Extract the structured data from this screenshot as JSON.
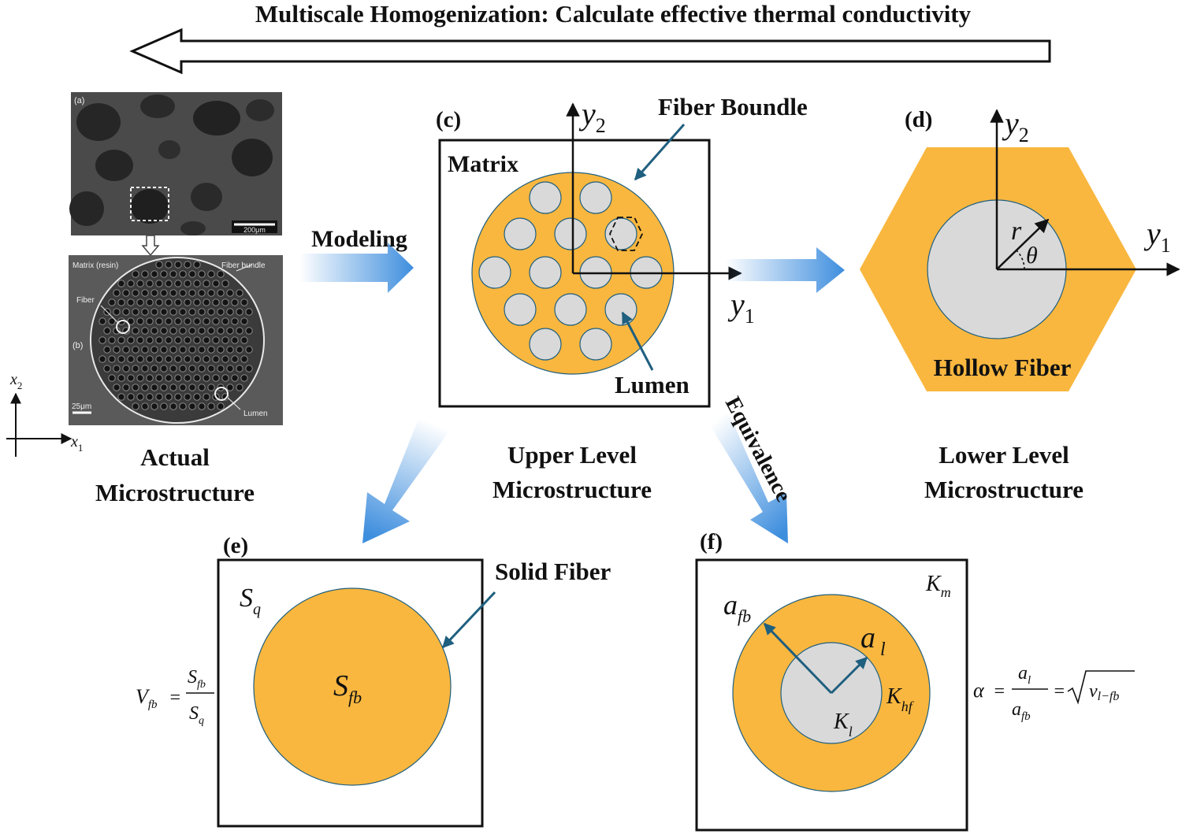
{
  "top_banner": "Multiscale Homogenization: Calculate effective thermal conductivity",
  "flow_labels": {
    "modeling": "Modeling",
    "equivalence": "Equivalence"
  },
  "panel_labels": {
    "c": "(c)",
    "d": "(d)",
    "e": "(e)",
    "f": "(f)"
  },
  "sem": {
    "a_tag": "(a)",
    "b_tag": "(b)",
    "scale_top": "200μm",
    "scale_bottom": "25μm",
    "matrix": "Matrix (resin)",
    "fiber_bundle": "Fiber bundle",
    "fiber": "Fiber",
    "lumen": "Lumen"
  },
  "axes": {
    "x1": "x",
    "x1_sub": "1",
    "x2": "x",
    "x2_sub": "2",
    "y1": "y",
    "y1_sub": "1",
    "y2": "y",
    "y2_sub": "2"
  },
  "panel_c": {
    "matrix": "Matrix",
    "fiber_bundle": "Fiber Boundle",
    "lumen": "Lumen"
  },
  "panel_d": {
    "hollow_fiber": "Hollow Fiber",
    "r": "r",
    "theta": "θ"
  },
  "captions": {
    "actual_1": "Actual",
    "actual_2": "Microstructure",
    "upper_1": "Upper Level",
    "upper_2": "Microstructure",
    "lower_1": "Lower Level",
    "lower_2": "Microstructure"
  },
  "panel_e": {
    "solid_fiber": "Solid Fiber",
    "sq": "S",
    "sq_sub": "q",
    "sfb": "S",
    "sfb_sub": "fb",
    "eq_lhs": "V",
    "eq_lhs_sub": "fb",
    "eq_eq": "=",
    "eq_num": "S",
    "eq_num_sub": "fb",
    "eq_den": "S",
    "eq_den_sub": "q"
  },
  "panel_f": {
    "km": "K",
    "km_sub": "m",
    "afb": "a",
    "afb_sub": "fb",
    "al": "a",
    "al_sub": "l",
    "khf": "K",
    "khf_sub": "hf",
    "kl": "K",
    "kl_sub": "l",
    "eq_alpha": "α",
    "eq_eq": "=",
    "eq_num": "a",
    "eq_num_sub": "l",
    "eq_den": "a",
    "eq_den_sub": "fb",
    "eq_eq2": "=",
    "eq_root": "v",
    "eq_root_sub": "l−fb"
  },
  "colors": {
    "fiber_orange": "#F9B73F",
    "lumen_gray": "#D9D9D9",
    "flow_blue": "#3E8EDE",
    "pointer": "#1F5F7F"
  }
}
